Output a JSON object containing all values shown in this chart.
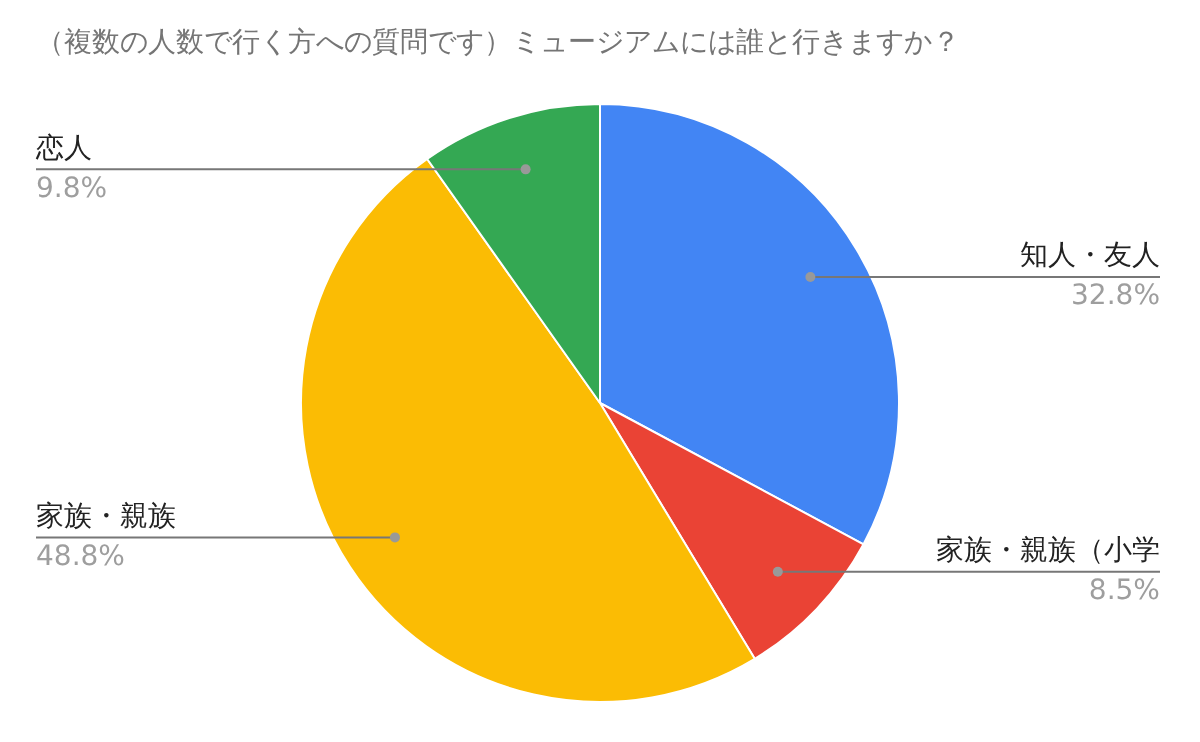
{
  "chart_data": {
    "type": "pie",
    "title": "（複数の人数で行く方への質問です）ミュージアムには誰と行きますか？",
    "categories": [
      "知人・友人",
      "家族・親族（小学",
      "家族・親族",
      "恋人"
    ],
    "values": [
      32.8,
      8.5,
      48.8,
      9.8
    ],
    "colors": [
      "#4285f4",
      "#ea4335",
      "#fbbc04",
      "#34a853"
    ],
    "value_labels": [
      "32.8%",
      "8.5%",
      "48.8%",
      "9.8%"
    ]
  }
}
